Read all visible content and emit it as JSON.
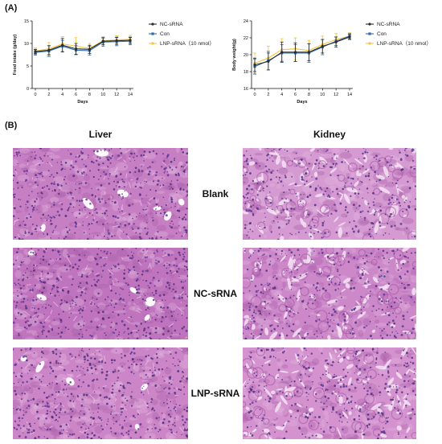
{
  "panel_a": {
    "label": "(A)"
  },
  "panel_b": {
    "label": "(B)"
  },
  "legend": {
    "items": [
      {
        "name": "NC-sRNA",
        "color": "#2b2b2b"
      },
      {
        "name": "Con",
        "color": "#2b6cb0"
      },
      {
        "name": "LNP-sRNA（10 nmol）",
        "color": "#f2c53d"
      }
    ]
  },
  "chart_data": [
    {
      "type": "line",
      "title": "",
      "xlabel": "Days",
      "ylabel": "Food intake (g/day)",
      "x": [
        0,
        2,
        4,
        6,
        8,
        10,
        12,
        14
      ],
      "xlim": [
        0,
        14
      ],
      "ylim": [
        0,
        15
      ],
      "xticks": [
        0,
        2,
        4,
        6,
        8,
        10,
        12,
        14
      ],
      "yticks": [
        0,
        5,
        10,
        15
      ],
      "series": [
        {
          "name": "NC-sRNA",
          "values": [
            8.2,
            8.5,
            9.6,
            8.8,
            8.7,
            10.5,
            10.6,
            10.7
          ],
          "errors": [
            0.5,
            1.0,
            1.5,
            1.2,
            0.9,
            0.8,
            0.8,
            0.7
          ]
        },
        {
          "name": "Con",
          "values": [
            8.0,
            8.3,
            9.4,
            8.5,
            8.4,
            10.3,
            10.4,
            10.5
          ],
          "errors": [
            0.6,
            1.2,
            1.3,
            1.0,
            1.0,
            0.9,
            0.9,
            0.8
          ]
        },
        {
          "name": "LNP-sRNA（10 nmol）",
          "values": [
            8.3,
            8.8,
            9.9,
            9.4,
            8.9,
            10.6,
            10.8,
            10.9
          ],
          "errors": [
            0.7,
            1.4,
            1.6,
            1.9,
            1.1,
            0.9,
            0.9,
            0.9
          ]
        }
      ]
    },
    {
      "type": "line",
      "title": "",
      "xlabel": "Days",
      "ylabel": "Body weight(g)",
      "x": [
        0,
        2,
        4,
        6,
        8,
        10,
        12,
        14
      ],
      "xlim": [
        0,
        14
      ],
      "ylim": [
        16,
        24
      ],
      "xticks": [
        0,
        2,
        4,
        6,
        8,
        10,
        12,
        14
      ],
      "yticks": [
        16,
        18,
        20,
        22,
        24
      ],
      "series": [
        {
          "name": "NC-sRNA",
          "values": [
            18.8,
            19.2,
            20.3,
            20.3,
            20.3,
            21.0,
            21.5,
            22.1
          ],
          "errors": [
            0.8,
            1.0,
            1.2,
            1.1,
            1.0,
            0.8,
            0.6,
            0.3
          ]
        },
        {
          "name": "Con",
          "values": [
            18.6,
            19.3,
            20.2,
            20.2,
            20.2,
            20.9,
            21.6,
            22.2
          ],
          "errors": [
            0.9,
            1.1,
            1.0,
            1.0,
            1.1,
            0.9,
            0.5,
            0.3
          ]
        },
        {
          "name": "LNP-sRNA（10 nmol）",
          "values": [
            19.0,
            19.6,
            20.6,
            20.7,
            20.5,
            21.2,
            21.8,
            22.2
          ],
          "errors": [
            1.2,
            1.4,
            1.3,
            1.3,
            1.2,
            1.0,
            0.7,
            0.4
          ]
        }
      ]
    }
  ],
  "histology": {
    "columns": [
      "Liver",
      "Kidney"
    ],
    "rows": [
      "Blank",
      "NC-sRNA",
      "LNP-sRNA"
    ]
  }
}
